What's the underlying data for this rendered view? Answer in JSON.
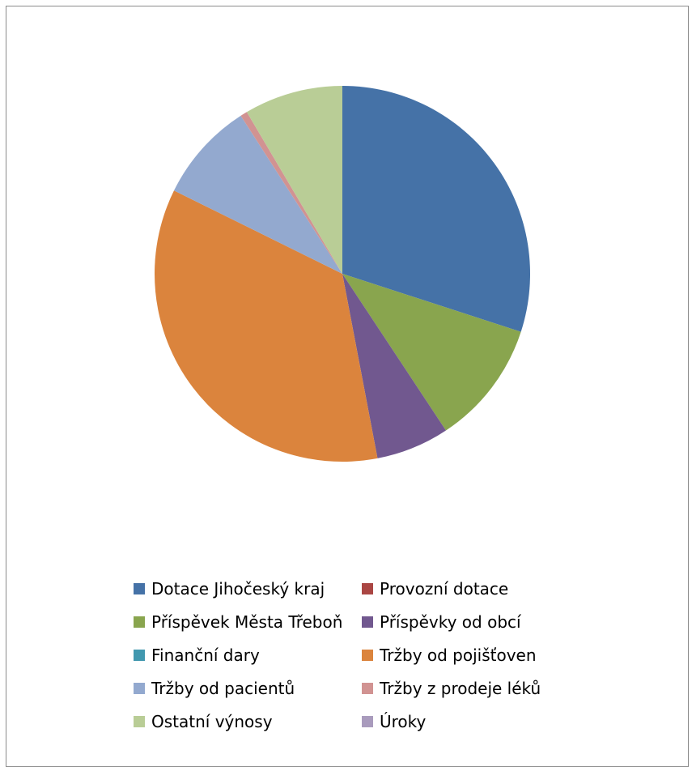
{
  "chart_data": {
    "type": "pie",
    "title": "",
    "legend_position": "bottom",
    "start_angle_deg": 0,
    "direction": "clockwise",
    "slices": [
      {
        "label": "Dotace Jihočeský kraj",
        "value": 30.0,
        "color": "#4572A7"
      },
      {
        "label": "Provozní dotace",
        "value": 0.0,
        "color": "#AA4643"
      },
      {
        "label": "Příspěvek Města Třeboň",
        "value": 10.7,
        "color": "#89A54E"
      },
      {
        "label": "Příspěvky od obcí",
        "value": 6.3,
        "color": "#71588F"
      },
      {
        "label": "Finanční dary",
        "value": 0.0,
        "color": "#4198AF"
      },
      {
        "label": "Tržby od pojišťoven",
        "value": 35.3,
        "color": "#DB843D"
      },
      {
        "label": "Tržby od pacientů",
        "value": 8.6,
        "color": "#93A9CF"
      },
      {
        "label": "Tržby z prodeje léků",
        "value": 0.6,
        "color": "#D19392"
      },
      {
        "label": "Ostatní výnosy",
        "value": 8.5,
        "color": "#B9CD96"
      },
      {
        "label": "Úroky",
        "value": 0.0,
        "color": "#A99BBD"
      }
    ]
  }
}
